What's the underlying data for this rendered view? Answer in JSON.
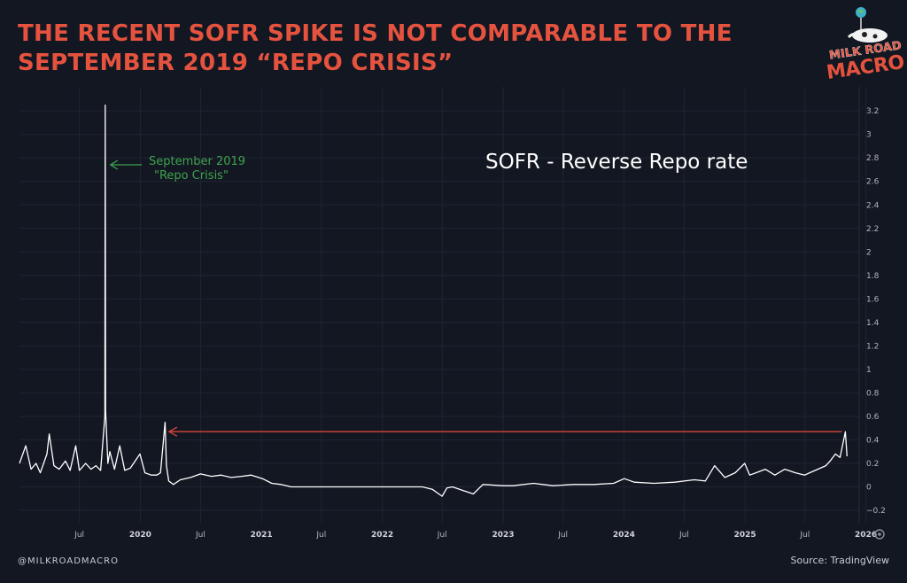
{
  "headline": {
    "line1": "THE RECENT SOFR SPIKE IS NOT COMPARABLE TO THE",
    "line2": "SEPTEMBER 2019 “REPO CRISIS”"
  },
  "logo": {
    "top_text": "MILK ROAD",
    "bottom_text": "MACRO",
    "icon": "cow-on-globe-icon"
  },
  "footer": {
    "handle": "@MILKROADMACRO",
    "source": "Source: TradingView"
  },
  "colors": {
    "background": "#131722",
    "headline": "#e5533f",
    "series": "#ffffff",
    "annotation_green": "#3fa34d",
    "reference_arrow": "#d9443b",
    "grid": "#1f2433"
  },
  "chart_data": {
    "type": "line",
    "title": "SOFR - Reverse Repo rate",
    "xlabel": "",
    "ylabel": "",
    "ylim": [
      -0.3,
      3.4
    ],
    "y_ticks": [
      "3.2",
      "3",
      "2.8",
      "2.6",
      "2.4",
      "2.2",
      "2",
      "1.8",
      "1.6",
      "1.4",
      "1.2",
      "1",
      "0.8",
      "0.6",
      "0.4",
      "0.2",
      "0",
      "−0.2"
    ],
    "x_ticks": [
      "Jul",
      "2020",
      "Jul",
      "2021",
      "Jul",
      "2022",
      "Jul",
      "2023",
      "Jul",
      "2024",
      "Jul",
      "2025",
      "Jul",
      "2026"
    ],
    "x_range": [
      "2019-01",
      "2026-03"
    ],
    "grid": true,
    "annotations": [
      {
        "text_line1": "September 2019",
        "text_line2": "\"Repo Crisis\"",
        "points_to": "2019-09-17",
        "color": "green"
      },
      {
        "type": "arrow",
        "from": "2025-10-31",
        "to": "2020-03",
        "level": 0.47,
        "color": "red"
      }
    ],
    "series": [
      {
        "x": [
          "2019-01-01",
          "2019-01-20",
          "2019-02-05",
          "2019-02-20",
          "2019-03-05",
          "2019-03-25",
          "2019-04-01",
          "2019-04-15",
          "2019-05-01",
          "2019-05-20",
          "2019-06-03",
          "2019-06-20",
          "2019-07-01",
          "2019-07-20",
          "2019-08-05",
          "2019-08-20",
          "2019-09-03",
          "2019-09-16",
          "2019-09-17",
          "2019-09-18",
          "2019-09-25",
          "2019-10-01",
          "2019-10-15",
          "2019-10-31",
          "2019-11-15",
          "2019-12-02",
          "2019-12-31",
          "2020-01-15",
          "2020-02-03",
          "2020-02-20",
          "2020-03-02",
          "2020-03-16",
          "2020-03-20",
          "2020-03-27",
          "2020-04-10",
          "2020-05-01",
          "2020-06-01",
          "2020-07-01",
          "2020-08-03",
          "2020-09-01",
          "2020-10-01",
          "2020-11-02",
          "2020-12-01",
          "2021-01-04",
          "2021-02-01",
          "2021-03-01",
          "2021-04-01",
          "2021-06-01",
          "2021-08-02",
          "2021-10-01",
          "2021-12-01",
          "2022-02-01",
          "2022-04-01",
          "2022-05-02",
          "2022-06-01",
          "2022-07-01",
          "2022-07-15",
          "2022-08-01",
          "2022-09-01",
          "2022-10-03",
          "2022-11-01",
          "2022-12-30",
          "2023-02-01",
          "2023-04-03",
          "2023-05-01",
          "2023-06-01",
          "2023-08-01",
          "2023-10-02",
          "2023-12-01",
          "2024-01-02",
          "2024-02-01",
          "2024-04-01",
          "2024-06-03",
          "2024-07-01",
          "2024-08-01",
          "2024-09-03",
          "2024-10-01",
          "2024-11-01",
          "2024-12-02",
          "2024-12-31",
          "2025-01-15",
          "2025-02-03",
          "2025-03-03",
          "2025-04-01",
          "2025-05-01",
          "2025-06-02",
          "2025-06-30",
          "2025-07-15",
          "2025-08-01",
          "2025-09-02",
          "2025-09-15",
          "2025-10-01",
          "2025-10-15",
          "2025-10-31",
          "2025-11-05"
        ],
        "y": [
          0.2,
          0.35,
          0.15,
          0.2,
          0.12,
          0.28,
          0.45,
          0.18,
          0.15,
          0.22,
          0.14,
          0.35,
          0.14,
          0.2,
          0.15,
          0.18,
          0.14,
          0.6,
          3.25,
          0.65,
          0.2,
          0.3,
          0.15,
          0.35,
          0.14,
          0.16,
          0.28,
          0.12,
          0.1,
          0.1,
          0.12,
          0.55,
          0.18,
          0.05,
          0.02,
          0.06,
          0.08,
          0.11,
          0.09,
          0.1,
          0.08,
          0.09,
          0.1,
          0.07,
          0.03,
          0.02,
          0.0,
          0.0,
          0.0,
          0.0,
          0.0,
          0.0,
          0.0,
          0.0,
          -0.02,
          -0.08,
          -0.01,
          0.0,
          -0.03,
          -0.06,
          0.02,
          0.01,
          0.01,
          0.03,
          0.02,
          0.01,
          0.02,
          0.02,
          0.03,
          0.07,
          0.04,
          0.03,
          0.04,
          0.05,
          0.06,
          0.05,
          0.18,
          0.08,
          0.12,
          0.2,
          0.1,
          0.12,
          0.15,
          0.1,
          0.15,
          0.12,
          0.1,
          0.12,
          0.14,
          0.18,
          0.22,
          0.28,
          0.25,
          0.47,
          0.26
        ]
      }
    ]
  }
}
